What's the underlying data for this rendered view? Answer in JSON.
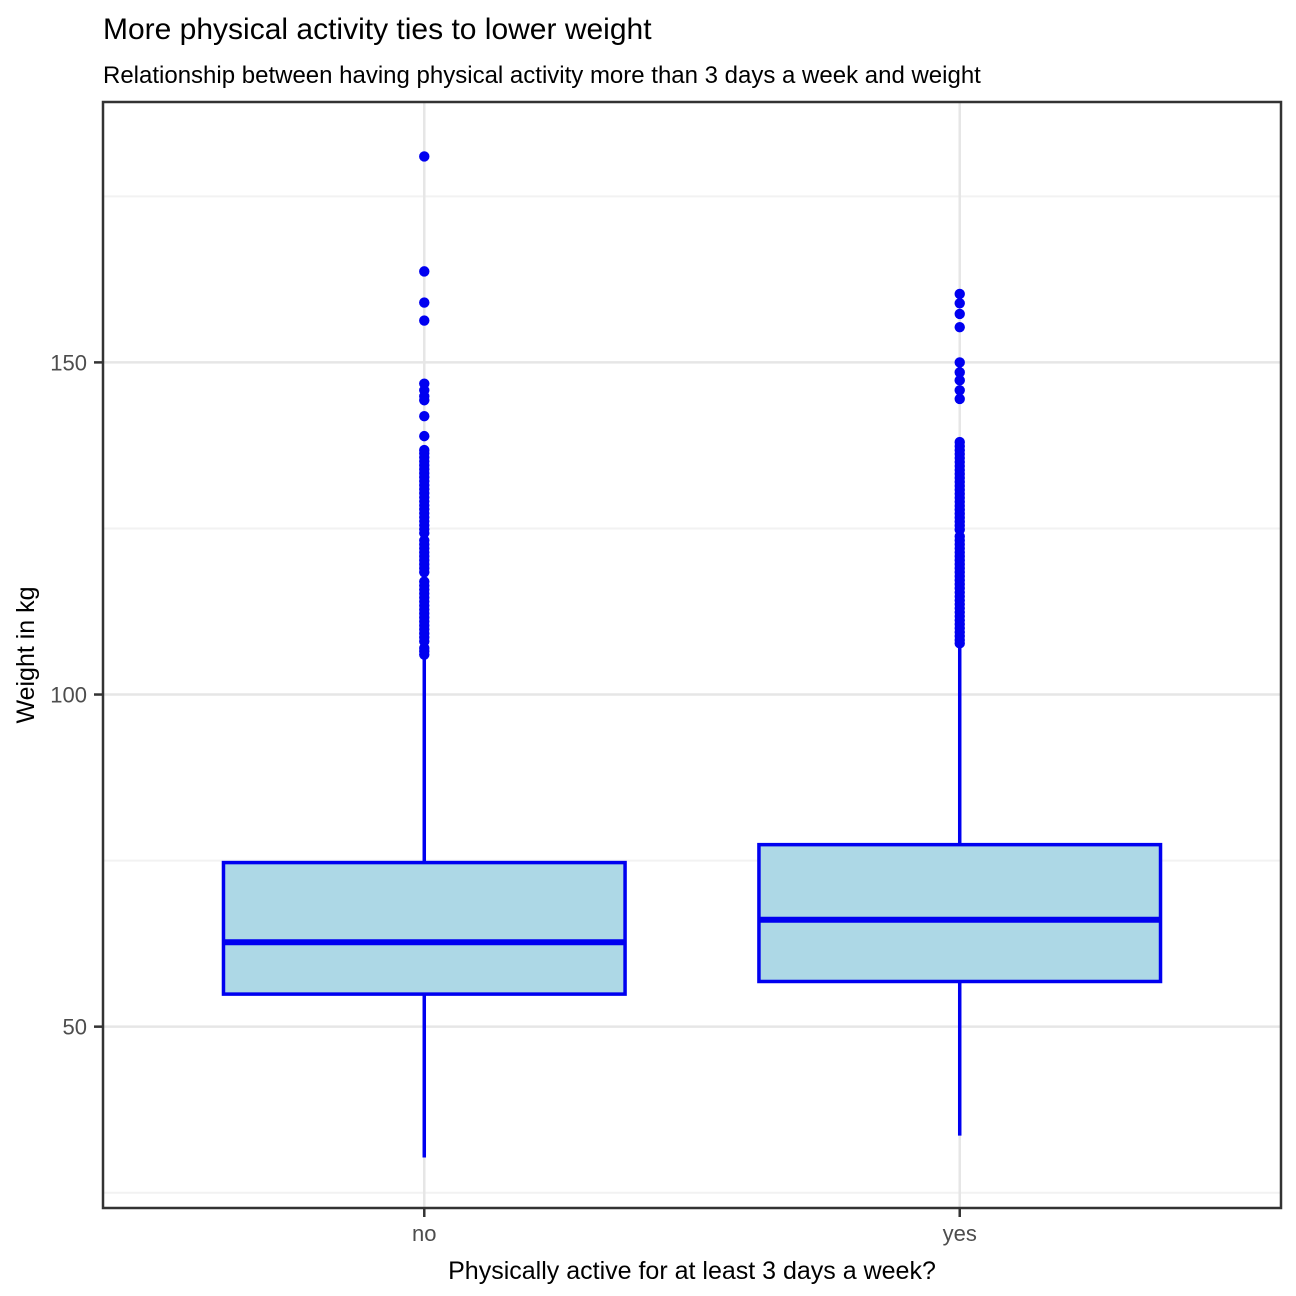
{
  "chart_data": {
    "type": "boxplot",
    "title": "More physical activity ties to lower weight",
    "subtitle": "Relationship between having physical activity more than 3 days a week and weight",
    "xlabel": "Physically active for at least 3 days a week?",
    "ylabel": "Weight in kg",
    "categories": [
      "no",
      "yes"
    ],
    "y_axis": {
      "ylim": [
        22.7,
        189.2
      ],
      "major_ticks": [
        50,
        100,
        150
      ],
      "minor_ticks": [
        25,
        75,
        125,
        175
      ],
      "tick_labels": [
        "50",
        "100",
        "150"
      ]
    },
    "grid": {
      "major": true,
      "minor": true,
      "vertical_at_categories": true
    },
    "legend": "none",
    "series": [
      {
        "name": "no",
        "whisker_low": 30.3,
        "q1": 54.9,
        "median": 62.7,
        "q3": 74.7,
        "whisker_high": 105.5,
        "outliers": [
          181,
          163.7,
          159,
          156.3,
          146.8,
          145.8,
          144.9,
          144.3,
          141.9,
          138.9,
          136.8,
          136.3,
          135.7,
          135.1,
          134.5,
          133.9,
          133.3,
          132.7,
          132.1,
          131.5,
          130.9,
          130.3,
          129.7,
          129.1,
          128.5,
          127.9,
          127.3,
          126.7,
          126.1,
          125.5,
          124.9,
          124.3,
          123.2,
          122.6,
          122.0,
          121.4,
          120.8,
          120.2,
          119.6,
          119.0,
          118.4,
          117.0,
          116.4,
          115.8,
          115.2,
          114.6,
          114.0,
          113.4,
          112.8,
          112.2,
          111.6,
          111.0,
          110.4,
          109.8,
          109.2,
          108.6,
          108.0,
          107.0,
          106.5,
          106.0
        ]
      },
      {
        "name": "yes",
        "whisker_low": 33.6,
        "q1": 56.8,
        "median": 66.1,
        "q3": 77.4,
        "whisker_high": 107.1,
        "outliers": [
          160.3,
          158.9,
          157.3,
          155.3,
          150.0,
          148.5,
          147.3,
          145.8,
          144.5,
          138.0,
          137.4,
          136.8,
          136.2,
          135.6,
          135.0,
          134.4,
          133.8,
          133.2,
          132.6,
          132.0,
          131.4,
          130.8,
          130.2,
          129.6,
          129.0,
          128.4,
          127.8,
          127.2,
          126.6,
          126.0,
          125.4,
          124.8,
          123.8,
          123.2,
          122.6,
          122.0,
          121.4,
          120.8,
          120.2,
          119.6,
          119.0,
          118.4,
          117.8,
          117.2,
          116.6,
          116.0,
          115.4,
          114.8,
          114.2,
          113.6,
          113.0,
          112.4,
          111.8,
          111.2,
          110.6,
          110.0,
          109.4,
          108.8,
          108.2,
          107.7
        ]
      }
    ],
    "colors": {
      "box_fill": "#ADD8E6",
      "box_stroke": "#0000F0",
      "outlier": "#0000F0",
      "grid_major": "#E6E6E6",
      "grid_minor": "#F2F2F2",
      "panel_border": "#333333",
      "tick_mark": "#333333",
      "tick_label": "#4D4D4D",
      "text": "#000000",
      "panel_background": "#FFFFFF"
    }
  }
}
